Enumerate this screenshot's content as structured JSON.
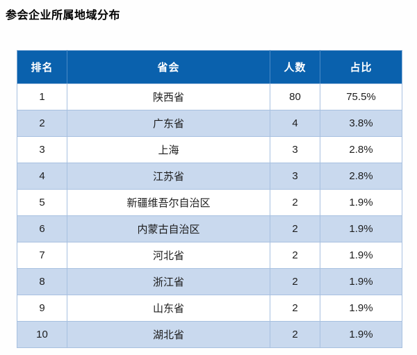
{
  "page": {
    "title": "参会企业所属地域分布"
  },
  "colors": {
    "header_bg": "#0a61ad",
    "header_text": "#ffffff",
    "row_bg": "#ffffff",
    "row_alt_bg": "#c9d9ee",
    "border": "#a7c0e0",
    "body_text": "#1c1c1c"
  },
  "table": {
    "headers": [
      "排名",
      "省会",
      "人数",
      "占比"
    ],
    "rows": [
      [
        "1",
        "陕西省",
        "80",
        "75.5%"
      ],
      [
        "2",
        "广东省",
        "4",
        "3.8%"
      ],
      [
        "3",
        "上海",
        "3",
        "2.8%"
      ],
      [
        "4",
        "江苏省",
        "3",
        "2.8%"
      ],
      [
        "5",
        "新疆维吾尔自治区",
        "2",
        "1.9%"
      ],
      [
        "6",
        "内蒙古自治区",
        "2",
        "1.9%"
      ],
      [
        "7",
        "河北省",
        "2",
        "1.9%"
      ],
      [
        "8",
        "浙江省",
        "2",
        "1.9%"
      ],
      [
        "9",
        "山东省",
        "2",
        "1.9%"
      ],
      [
        "10",
        "湖北省",
        "2",
        "1.9%"
      ]
    ]
  },
  "chart_data": {
    "type": "table",
    "title": "参会企业所属地域分布",
    "columns": [
      "排名",
      "省会",
      "人数",
      "占比"
    ],
    "rows": [
      {
        "rank": 1,
        "region": "陕西省",
        "count": 80,
        "share": "75.5%"
      },
      {
        "rank": 2,
        "region": "广东省",
        "count": 4,
        "share": "3.8%"
      },
      {
        "rank": 3,
        "region": "上海",
        "count": 3,
        "share": "2.8%"
      },
      {
        "rank": 4,
        "region": "江苏省",
        "count": 3,
        "share": "2.8%"
      },
      {
        "rank": 5,
        "region": "新疆维吾尔自治区",
        "count": 2,
        "share": "1.9%"
      },
      {
        "rank": 6,
        "region": "内蒙古自治区",
        "count": 2,
        "share": "1.9%"
      },
      {
        "rank": 7,
        "region": "河北省",
        "count": 2,
        "share": "1.9%"
      },
      {
        "rank": 8,
        "region": "浙江省",
        "count": 2,
        "share": "1.9%"
      },
      {
        "rank": 9,
        "region": "山东省",
        "count": 2,
        "share": "1.9%"
      },
      {
        "rank": 10,
        "region": "湖北省",
        "count": 2,
        "share": "1.9%"
      }
    ]
  }
}
